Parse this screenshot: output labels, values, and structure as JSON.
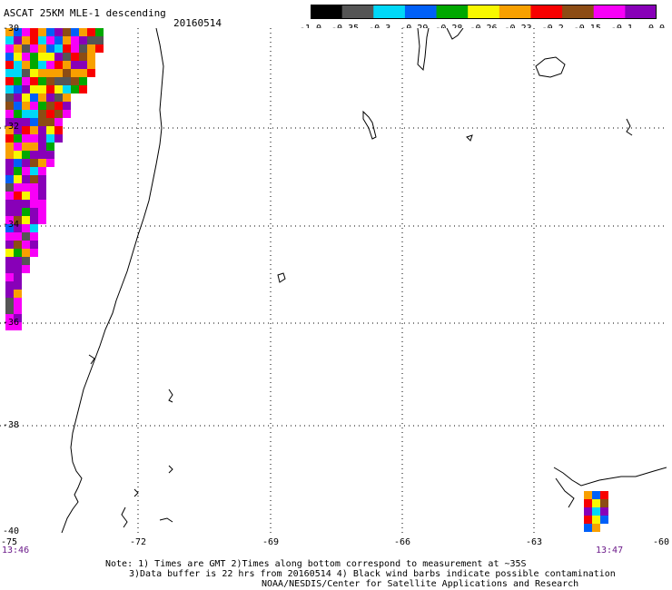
{
  "header": {
    "title": "ASCAT 25KM MLE-1 descending",
    "date": "20160514"
  },
  "colorbar": {
    "labels": [
      "-1.0",
      "-0.35",
      "-0.3",
      "-0.29",
      "-0.28",
      "-0.26",
      "-0.23",
      "-0.2",
      "-0.15",
      "-0.1",
      "0.0"
    ],
    "colors": [
      "#000000",
      "#555555",
      "#00d8f8",
      "#0060f8",
      "#00a800",
      "#f8f800",
      "#f8a000",
      "#f80000",
      "#8c4c14",
      "#f800f8",
      "#8800b8"
    ]
  },
  "axes": {
    "x_ticks": [
      "-75",
      "-72",
      "-69",
      "-66",
      "-63",
      "-60"
    ],
    "y_ticks": [
      "-30",
      "-32",
      "-34",
      "-36",
      "-38",
      "-40"
    ]
  },
  "times": {
    "left": "13:46",
    "right": "13:47"
  },
  "notes": {
    "line1": "Note: 1) Times are GMT 2)Times along bottom correspond to measurement at ~35S",
    "line2": "3)Data buffer is 22 hrs from 20160514 4) Black wind barbs indicate possible contamination",
    "line3": "NOAA/NESDIS/Center for Satellite Applications and Research"
  }
}
